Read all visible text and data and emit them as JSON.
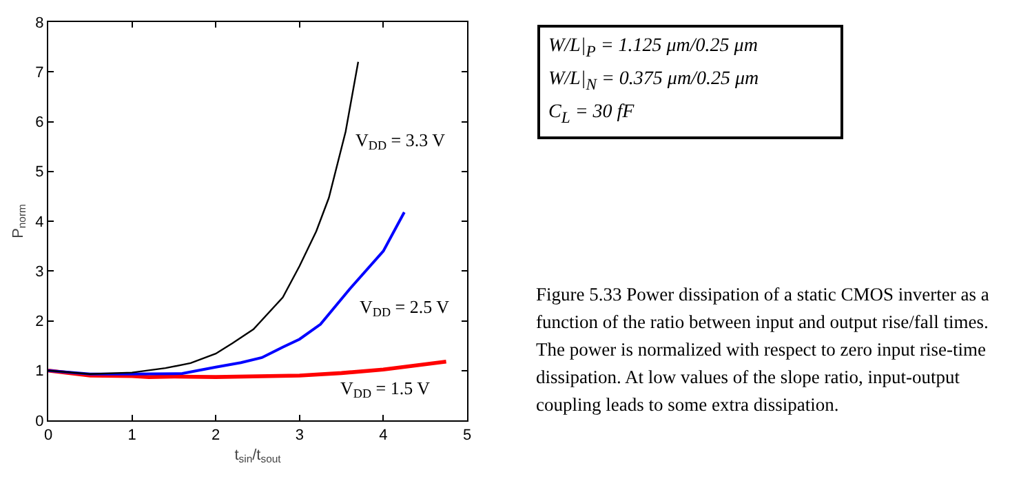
{
  "chart_data": {
    "type": "line",
    "xlabel": "t$_{sin}$/t$_{sout}$",
    "ylabel": "P$_{norm}$",
    "xlim": [
      0,
      5
    ],
    "xticks": [
      0,
      1,
      2,
      3,
      4,
      5
    ],
    "ylim": [
      0,
      8
    ],
    "yticks": [
      0,
      1,
      2,
      3,
      4,
      5,
      6,
      7,
      8
    ],
    "grid": false,
    "legend": false,
    "marker": "none",
    "line_style": "solid",
    "series": [
      {
        "name": "V$_{DD}$ = 3.3 V",
        "color": "#000000",
        "x": [
          0,
          0.5,
          1.0,
          1.4,
          1.7,
          2.0,
          2.2,
          2.45,
          2.8,
          3.0,
          3.2,
          3.35,
          3.55,
          3.7
        ],
        "values": [
          1.0,
          0.93,
          0.96,
          1.05,
          1.15,
          1.34,
          1.55,
          1.83,
          2.47,
          3.1,
          3.8,
          4.47,
          5.8,
          7.2
        ]
      },
      {
        "name": "V$_{DD}$ = 2.5 V",
        "color": "#0000ff",
        "x": [
          0,
          0.5,
          1.0,
          1.6,
          2.0,
          2.3,
          2.55,
          2.8,
          3.0,
          3.25,
          3.6,
          4.0,
          4.25
        ],
        "values": [
          1.0,
          0.93,
          0.93,
          0.94,
          1.07,
          1.16,
          1.26,
          1.47,
          1.63,
          1.93,
          2.64,
          3.4,
          4.18
        ]
      },
      {
        "name": "V$_{DD}$ = 1.5 V",
        "color": "#ff0000",
        "x": [
          0,
          0.5,
          1.0,
          1.2,
          1.5,
          2.0,
          3.0,
          3.5,
          4.0,
          4.75
        ],
        "values": [
          1.0,
          0.9,
          0.89,
          0.87,
          0.88,
          0.87,
          0.9,
          0.95,
          1.02,
          1.18
        ]
      }
    ],
    "annotations": [
      "W/L|$_{P}$ = 1.125 μm/0.25 μm",
      "W/L|$_{N}$ = 0.375 μm/0.25 μm",
      "C$_{L}$ = 30 fF",
      "Figure 5.33 Power dissipation of a static CMOS inverter as a function of the ratio between input and output rise/fall times. The power is normalized with respect to zero input rise-time dissipation. At low values of the slope ratio, input-output coupling leads to some extra dissipation."
    ]
  }
}
